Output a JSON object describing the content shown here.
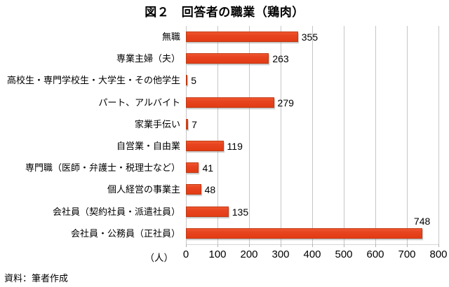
{
  "title": "図２　回答者の職業（鶏肉）",
  "source": "資料：筆者作成",
  "chart_data": {
    "type": "bar",
    "orientation": "horizontal",
    "title": "図２　回答者の職業（鶏肉）",
    "unit_label": "（人）",
    "categories": [
      "無職",
      "専業主婦（夫）",
      "高校生・専門学校生・大学生・その他学生",
      "パート、アルバイト",
      "家業手伝い",
      "自営業・自由業",
      "専門職（医師・弁護士・税理士など）",
      "個人経営の事業主",
      "会社員（契約社員・派遣社員）",
      "会社員・公務員（正社員）"
    ],
    "values": [
      355,
      263,
      5,
      279,
      7,
      119,
      41,
      48,
      135,
      748
    ],
    "xlim": [
      0,
      800
    ],
    "xticks": [
      0,
      100,
      200,
      300,
      400,
      500,
      600,
      700,
      800
    ],
    "grid": "vertical",
    "legend": "none",
    "bar_color": "#e8421a",
    "bar_border_color": "#c03a15",
    "gridline_color": "#c6c6c6"
  }
}
